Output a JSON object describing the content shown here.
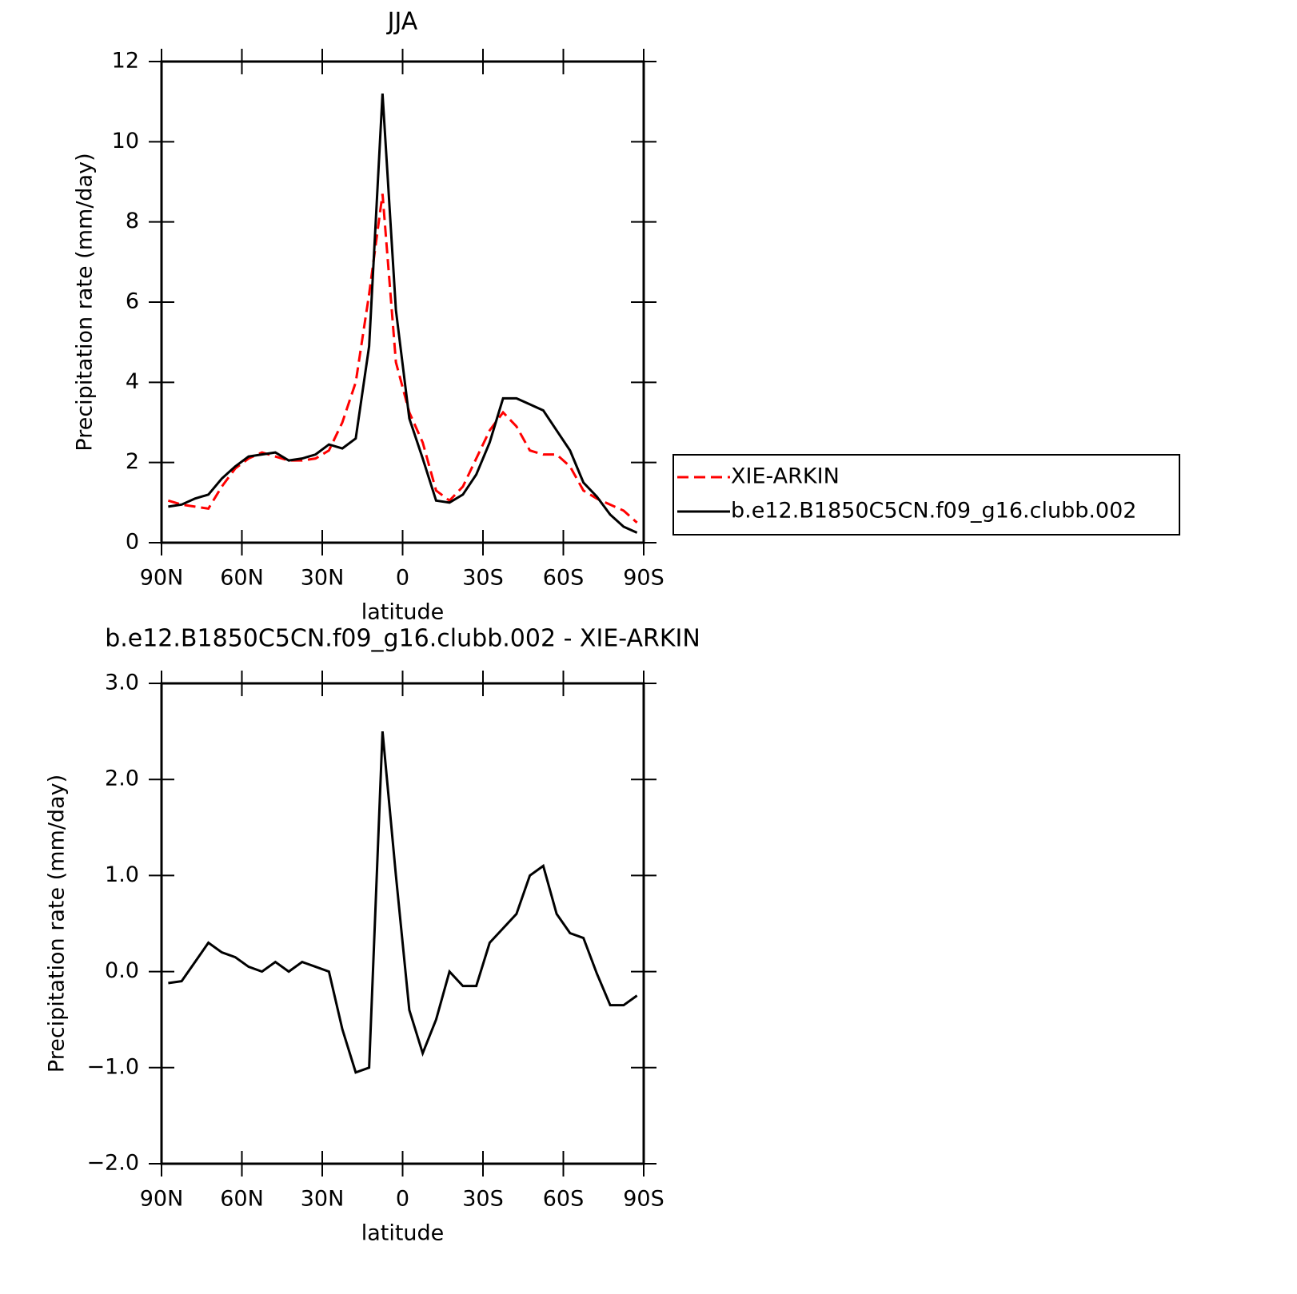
{
  "chart_data": [
    {
      "type": "line",
      "title": "JJA",
      "x_label": "latitude",
      "y_label": "Precipitation rate (mm/day)",
      "x": [
        87.5,
        82.5,
        77.5,
        72.5,
        67.5,
        62.5,
        57.5,
        52.5,
        47.5,
        42.5,
        37.5,
        32.5,
        27.5,
        22.5,
        17.5,
        12.5,
        7.5,
        2.5,
        -2.5,
        -7.5,
        -12.5,
        -17.5,
        -22.5,
        -27.5,
        -32.5,
        -37.5,
        -42.5,
        -47.5,
        -52.5,
        -57.5,
        -62.5,
        -67.5,
        -72.5,
        -77.5,
        -82.5,
        -87.5
      ],
      "series": [
        {
          "name": "XIE-ARKIN",
          "color": "#ff0000",
          "dashed": true,
          "values": [
            1.05,
            0.95,
            0.9,
            0.85,
            1.4,
            1.85,
            2.1,
            2.25,
            2.15,
            2.05,
            2.05,
            2.1,
            2.3,
            3.0,
            4.0,
            6.2,
            8.7,
            4.5,
            3.25,
            2.5,
            1.3,
            1.05,
            1.4,
            2.1,
            2.8,
            3.25,
            2.9,
            2.3,
            2.2,
            2.2,
            1.9,
            1.3,
            1.1,
            0.95,
            0.8,
            0.5
          ]
        },
        {
          "name": "b.e12.B1850C5CN.f09_g16.clubb.002",
          "color": "#000000",
          "dashed": false,
          "values": [
            0.9,
            0.95,
            1.1,
            1.2,
            1.6,
            1.9,
            2.15,
            2.2,
            2.25,
            2.05,
            2.1,
            2.2,
            2.45,
            2.35,
            2.6,
            4.9,
            11.2,
            5.8,
            3.1,
            2.1,
            1.05,
            1.0,
            1.2,
            1.7,
            2.5,
            3.6,
            3.6,
            3.45,
            3.3,
            2.8,
            2.3,
            1.5,
            1.15,
            0.7,
            0.4,
            0.25
          ]
        }
      ],
      "xlim": [
        90,
        -90
      ],
      "xticks": [
        {
          "value": 90,
          "label": "90N"
        },
        {
          "value": 60,
          "label": "60N"
        },
        {
          "value": 30,
          "label": "30N"
        },
        0,
        {
          "value": -30,
          "label": "30S"
        },
        {
          "value": -60,
          "label": "60S"
        },
        {
          "value": -90,
          "label": "90S"
        }
      ],
      "ylim": [
        0,
        12
      ],
      "yticks": [
        0,
        2,
        4,
        6,
        8,
        10,
        12
      ],
      "legend": "outside-right"
    },
    {
      "type": "line",
      "title": "b.e12.B1850C5CN.f09_g16.clubb.002 - XIE-ARKIN",
      "x_label": "latitude",
      "y_label": "Precipitation rate (mm/day)",
      "x": [
        87.5,
        82.5,
        77.5,
        72.5,
        67.5,
        62.5,
        57.5,
        52.5,
        47.5,
        42.5,
        37.5,
        32.5,
        27.5,
        22.5,
        17.5,
        12.5,
        7.5,
        2.5,
        -2.5,
        -7.5,
        -12.5,
        -17.5,
        -22.5,
        -27.5,
        -32.5,
        -37.5,
        -42.5,
        -47.5,
        -52.5,
        -57.5,
        -62.5,
        -67.5,
        -72.5,
        -77.5,
        -82.5,
        -87.5
      ],
      "series": [
        {
          "color": "#000000",
          "dashed": false,
          "values": [
            -0.12,
            -0.1,
            0.1,
            0.3,
            0.2,
            0.15,
            0.05,
            0.0,
            0.1,
            0.0,
            0.1,
            0.05,
            0.0,
            -0.6,
            -1.05,
            -1.0,
            2.5,
            1.0,
            -0.4,
            -0.85,
            -0.5,
            0.0,
            -0.15,
            -0.15,
            0.3,
            0.45,
            0.6,
            1.0,
            1.1,
            0.6,
            0.4,
            0.35,
            -0.02,
            -0.35,
            -0.35,
            -0.25
          ]
        }
      ],
      "xlim": [
        90,
        -90
      ],
      "xticks": [
        {
          "value": 90,
          "label": "90N"
        },
        {
          "value": 60,
          "label": "60N"
        },
        {
          "value": 30,
          "label": "30N"
        },
        0,
        {
          "value": -30,
          "label": "30S"
        },
        {
          "value": -60,
          "label": "60S"
        },
        {
          "value": -90,
          "label": "90S"
        }
      ],
      "ylim": [
        -2,
        3
      ],
      "yticks": [
        {
          "value": -2,
          "label": "−2.0"
        },
        {
          "value": -1,
          "label": "−1.0"
        },
        {
          "value": 0,
          "label": "0.0"
        },
        {
          "value": 1,
          "label": "1.0"
        },
        {
          "value": 2,
          "label": "2.0"
        },
        {
          "value": 3,
          "label": "3.0"
        }
      ]
    }
  ]
}
